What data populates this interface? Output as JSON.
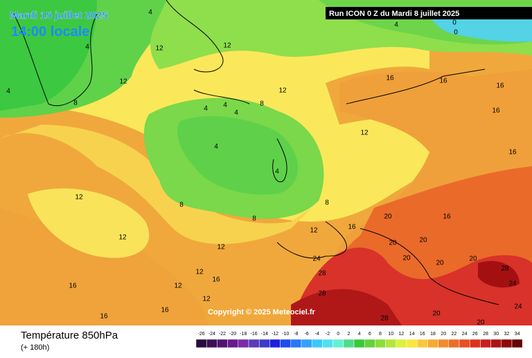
{
  "header": {
    "date": "Mardi 15 juillet 2025",
    "time": "14:00 locale",
    "run": "Run ICON 0 Z du Mardi 8 juillet 2025"
  },
  "copyright": "Copyright © 2025 Meteociel.fr",
  "footer": {
    "title": "Température 850hPa",
    "lead": "(+ 180h)"
  },
  "scale": [
    "-26",
    "-24",
    "-22",
    "-20",
    "-18",
    "-16",
    "-14",
    "-12",
    "-10",
    "-8",
    "-6",
    "-4",
    "-2",
    "0",
    "2",
    "4",
    "6",
    "8",
    "10",
    "12",
    "14",
    "16",
    "18",
    "20",
    "22",
    "24",
    "26",
    "28",
    "30",
    "32",
    "34"
  ],
  "contour_labels": [
    "4",
    "4",
    "4",
    "4",
    "4",
    "4",
    "4",
    "4",
    "4",
    "0",
    "0",
    "8",
    "8",
    "8",
    "8",
    "8",
    "12",
    "12",
    "12",
    "12",
    "12",
    "12",
    "12",
    "12",
    "12",
    "12",
    "12",
    "12",
    "16",
    "16",
    "16",
    "16",
    "16",
    "16",
    "16",
    "16",
    "16",
    "16",
    "16",
    "20",
    "20",
    "20",
    "20",
    "20",
    "20",
    "20",
    "20",
    "24",
    "24",
    "24",
    "28",
    "28",
    "28",
    "28"
  ]
}
